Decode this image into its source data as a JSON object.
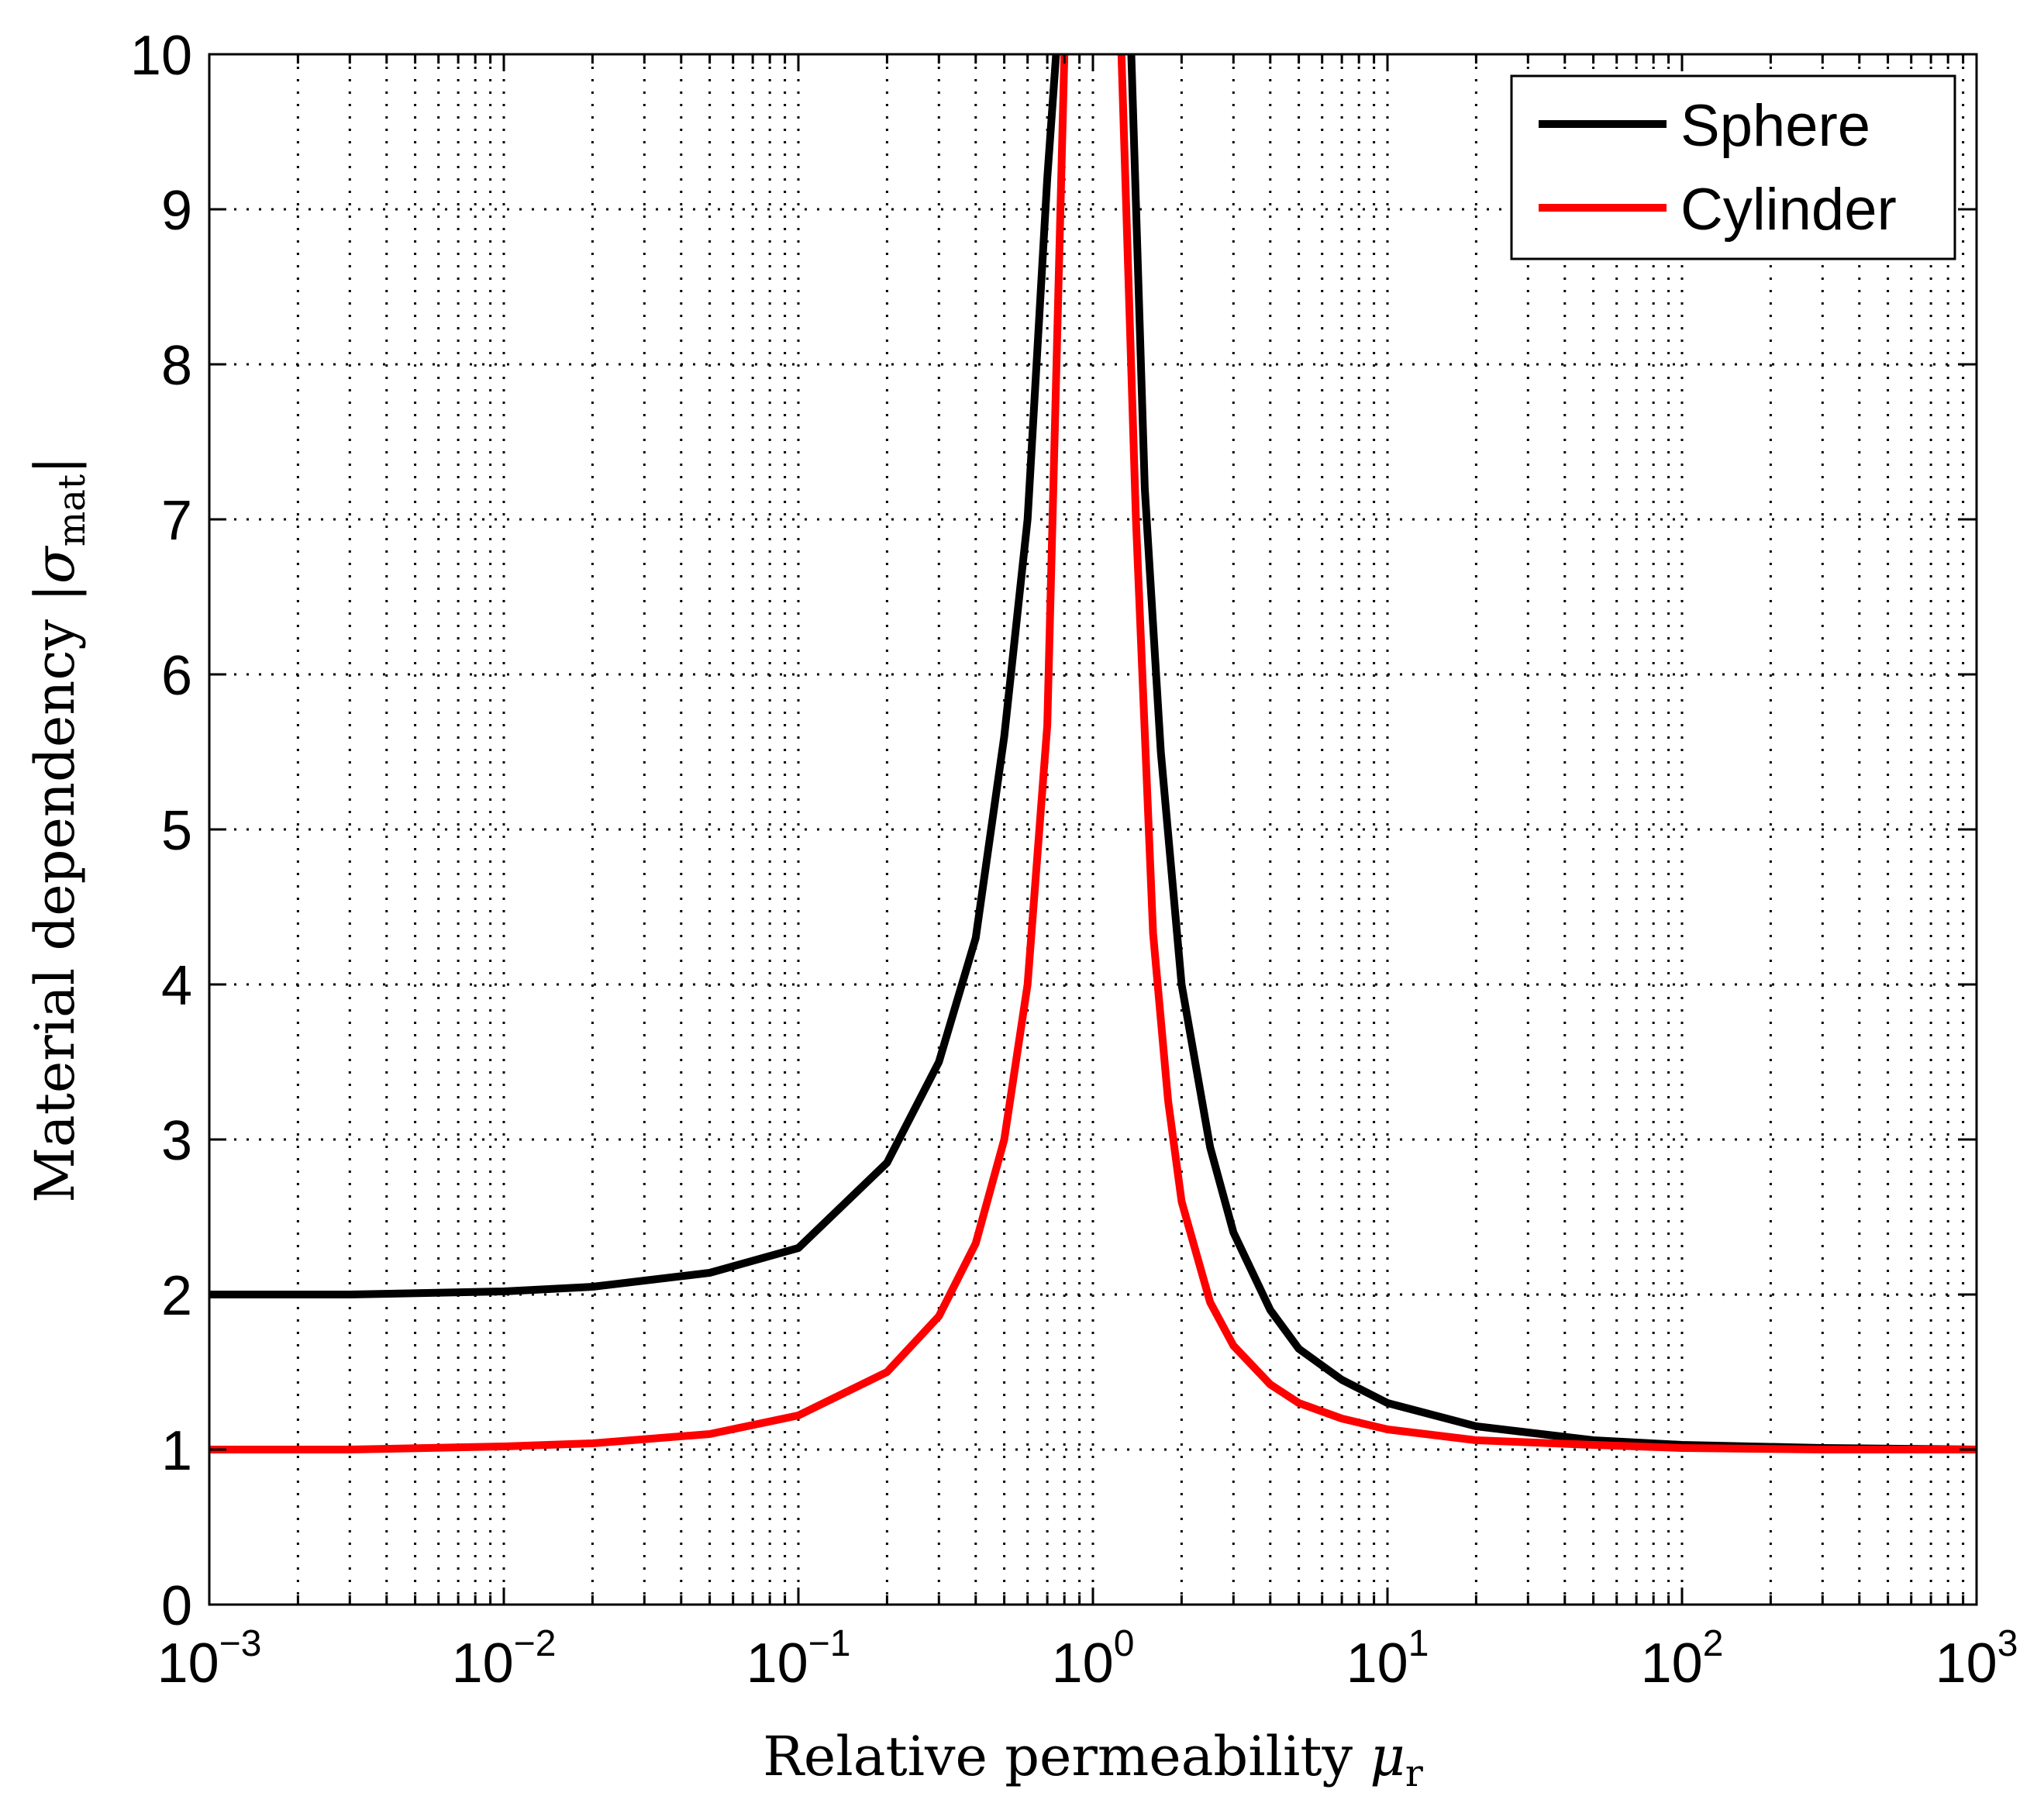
{
  "chart_data": {
    "type": "line",
    "title": "",
    "xlabel": {
      "main": "Relative permeability ",
      "symbol": "μ",
      "subscript": "r"
    },
    "ylabel": {
      "main": "Material dependency ",
      "symbol": "|σ",
      "subscript": "mat",
      "close": "|"
    },
    "xscale": "log",
    "xlim": [
      0.001,
      1000
    ],
    "ylim": [
      0,
      10
    ],
    "grid": true,
    "x_ticks": [
      {
        "base": "10",
        "exp": "−3"
      },
      {
        "base": "10",
        "exp": "−2"
      },
      {
        "base": "10",
        "exp": "−1"
      },
      {
        "base": "10",
        "exp": "0"
      },
      {
        "base": "10",
        "exp": "1"
      },
      {
        "base": "10",
        "exp": "2"
      },
      {
        "base": "10",
        "exp": "3"
      }
    ],
    "y_ticks": [
      "0",
      "1",
      "2",
      "3",
      "4",
      "5",
      "6",
      "7",
      "8",
      "9",
      "10"
    ],
    "legend_position": "top-right",
    "series": [
      {
        "name": "Sphere",
        "color": "#000000",
        "x": [
          0.001,
          0.003,
          0.01,
          0.02,
          0.05,
          0.1,
          0.2,
          0.3,
          0.4,
          0.5,
          0.6,
          0.7,
          0.75,
          1.35,
          1.5,
          1.7,
          2,
          2.5,
          3,
          4,
          5,
          7,
          10,
          20,
          50,
          100,
          300,
          1000
        ],
        "values": [
          2.0,
          2.0,
          2.02,
          2.05,
          2.14,
          2.3,
          2.85,
          3.5,
          4.3,
          5.6,
          7.0,
          9.2,
          10.0,
          10.0,
          7.2,
          5.5,
          4.0,
          2.95,
          2.4,
          1.9,
          1.65,
          1.45,
          1.3,
          1.15,
          1.06,
          1.03,
          1.01,
          1.0
        ]
      },
      {
        "name": "Cylinder",
        "color": "#ff0000",
        "x": [
          0.001,
          0.003,
          0.01,
          0.02,
          0.05,
          0.1,
          0.2,
          0.3,
          0.4,
          0.5,
          0.6,
          0.7,
          0.8,
          1.25,
          1.4,
          1.6,
          1.8,
          2,
          2.5,
          3,
          4,
          5,
          7,
          10,
          20,
          50,
          100,
          300,
          1000
        ],
        "values": [
          1.0,
          1.0,
          1.02,
          1.04,
          1.1,
          1.22,
          1.5,
          1.86,
          2.33,
          3.0,
          4.0,
          5.67,
          10.0,
          10.0,
          7.0,
          4.33,
          3.25,
          2.6,
          1.95,
          1.67,
          1.42,
          1.3,
          1.2,
          1.13,
          1.06,
          1.03,
          1.01,
          1.0,
          1.0
        ]
      }
    ]
  }
}
